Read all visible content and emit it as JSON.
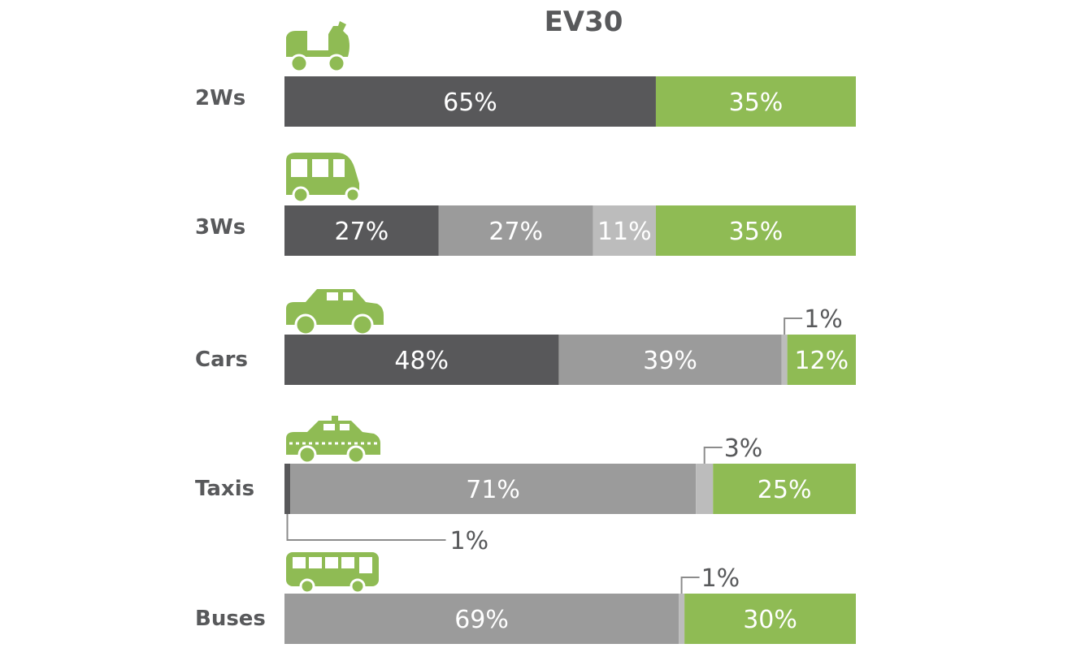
{
  "colors": {
    "segment_1": "#58585a",
    "segment_2": "#9b9b9b",
    "segment_3": "#bcbcbc",
    "segment_4": "#8fbb54",
    "text": "#58595b",
    "label_on_bar": "#ffffff"
  },
  "chart_data": {
    "type": "bar",
    "orientation": "horizontal",
    "stacked": true,
    "normalized_percent": true,
    "title": "EV30",
    "categories": [
      "2Ws",
      "3Ws",
      "Cars",
      "Taxis",
      "Buses"
    ],
    "category_icons": [
      "scooter-icon",
      "auto-rickshaw-icon",
      "car-icon",
      "taxi-icon",
      "bus-icon"
    ],
    "series": [
      {
        "values": [
          65,
          27,
          48,
          1,
          0
        ]
      },
      {
        "values": [
          0,
          27,
          39,
          71,
          69
        ]
      },
      {
        "values": [
          0,
          11,
          1,
          3,
          1
        ]
      },
      {
        "values": [
          35,
          35,
          12,
          25,
          30
        ]
      }
    ],
    "data_labels": [
      [
        "65%",
        "",
        "",
        "35%"
      ],
      [
        "27%",
        "27%",
        "11%",
        "35%"
      ],
      [
        "48%",
        "39%",
        "1%",
        "12%"
      ],
      [
        "1%",
        "71%",
        "3%",
        "25%"
      ],
      [
        "",
        "69%",
        "1%",
        "30%"
      ]
    ],
    "xlim": [
      0,
      100
    ],
    "xlabel": "",
    "ylabel": "",
    "grid": false,
    "legend": "none"
  }
}
